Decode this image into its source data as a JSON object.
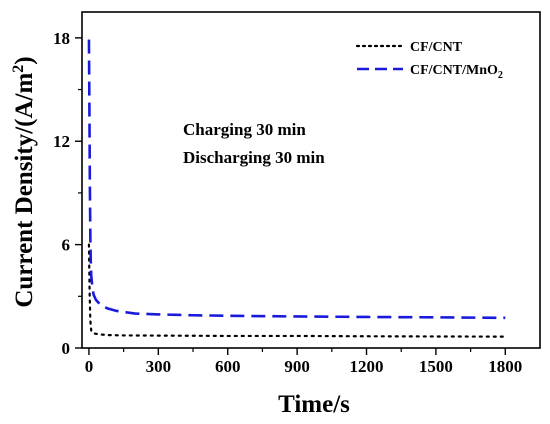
{
  "chart_data": {
    "type": "line",
    "xlabel": "Time/s",
    "ylabel_main": "Current Density/(A/m",
    "ylabel_sup": "2",
    "ylabel_close": ")",
    "xlim": [
      -30,
      1950
    ],
    "ylim": [
      0,
      19.5
    ],
    "xticks": [
      0,
      300,
      600,
      900,
      1200,
      1500,
      1800
    ],
    "yticks": [
      0,
      6,
      12,
      18
    ],
    "annotations": [
      "Charging 30 min",
      "Discharging 30 min"
    ],
    "legend_position": "top-right",
    "series": [
      {
        "name": "CF/CNT",
        "color": "#000000",
        "style": "dotted",
        "x": [
          0,
          3,
          6,
          10,
          20,
          40,
          80,
          150,
          300,
          600,
          900,
          1200,
          1500,
          1800
        ],
        "y": [
          6.0,
          3.2,
          1.6,
          1.0,
          0.85,
          0.8,
          0.75,
          0.73,
          0.72,
          0.7,
          0.7,
          0.68,
          0.67,
          0.66
        ]
      },
      {
        "name": "CF/CNT/MnO",
        "name_sub": "2",
        "color": "#1a1adc",
        "style": "dashed",
        "x": [
          0,
          2,
          4,
          6,
          8,
          10,
          15,
          20,
          30,
          50,
          80,
          120,
          200,
          300,
          450,
          600,
          900,
          1200,
          1500,
          1800
        ],
        "y": [
          17.9,
          14.0,
          9.5,
          6.5,
          5.0,
          4.2,
          3.5,
          3.1,
          2.8,
          2.5,
          2.3,
          2.15,
          2.0,
          1.95,
          1.9,
          1.87,
          1.83,
          1.8,
          1.78,
          1.75
        ]
      }
    ]
  }
}
